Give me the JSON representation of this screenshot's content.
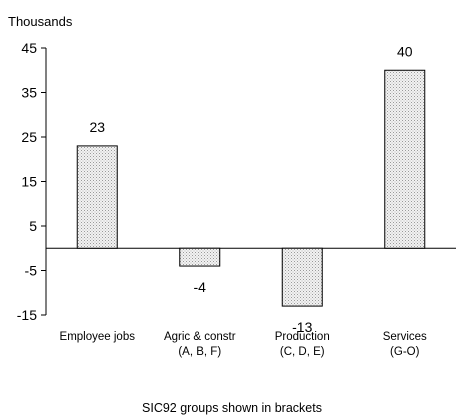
{
  "chart_data": {
    "type": "bar",
    "title": "",
    "unit_label": "Thousands",
    "categories": [
      {
        "line1": "Employee jobs",
        "line2": ""
      },
      {
        "line1": "Agric & constr",
        "line2": "(A, B, F)"
      },
      {
        "line1": "Production",
        "line2": "(C, D, E)"
      },
      {
        "line1": "Services",
        "line2": "(G-O)"
      }
    ],
    "values": [
      23,
      -4,
      -13,
      40
    ],
    "value_labels": [
      "23",
      "-4",
      "-13",
      "40"
    ],
    "yticks": [
      45,
      35,
      25,
      15,
      5,
      -5,
      -15
    ],
    "ylim": [
      -15,
      45
    ],
    "footnote": "SIC92 groups shown in brackets",
    "bar_fill": "#e6e6e6",
    "bar_stroke": "#000000",
    "grid": false
  }
}
